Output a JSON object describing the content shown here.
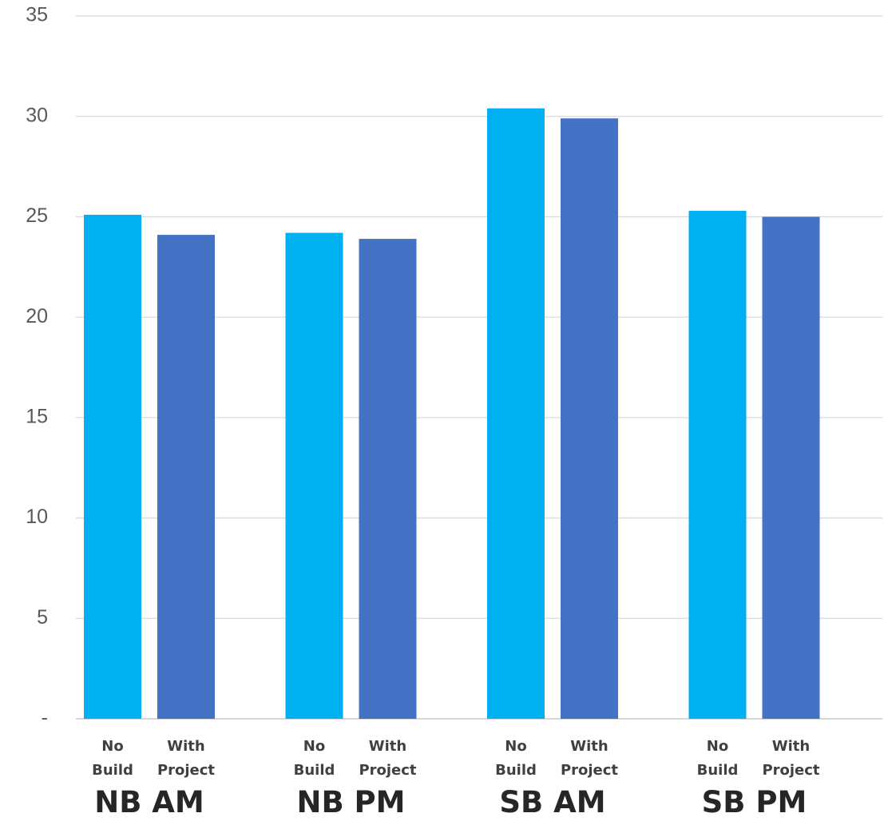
{
  "chart_data": {
    "type": "bar",
    "title": "",
    "xlabel": "",
    "ylabel": "",
    "ylim": [
      0,
      35
    ],
    "yticks": [
      0,
      5,
      10,
      15,
      20,
      25,
      30,
      35
    ],
    "ytick_labels": [
      "-",
      "5",
      "10",
      "15",
      "20",
      "25",
      "30",
      "35"
    ],
    "grid": true,
    "legend": "none",
    "categories": [
      "NB AM",
      "NB PM",
      "SB AM",
      "SB PM"
    ],
    "series": [
      {
        "sublabel": [
          "No",
          "Build"
        ],
        "color": "#00b0f0",
        "values": [
          25.1,
          24.2,
          30.4,
          25.3
        ]
      },
      {
        "sublabel": [
          "With",
          "Project"
        ],
        "color": "#4472c4",
        "values": [
          24.1,
          23.9,
          29.9,
          25.0
        ]
      }
    ]
  }
}
